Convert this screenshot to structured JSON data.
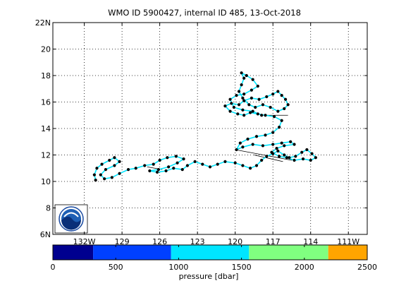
{
  "chart_data": {
    "type": "scatter",
    "title": "WMO ID 5900427, internal ID 485, 13-Oct-2018",
    "x_ticks": [
      "132W",
      "129",
      "126",
      "123",
      "120",
      "117",
      "114",
      "111W"
    ],
    "x_tick_values": [
      -132,
      -129,
      -126,
      -123,
      -120,
      -117,
      -114,
      -111
    ],
    "y_ticks": [
      "6N",
      "8",
      "10",
      "12",
      "14",
      "16",
      "18",
      "20",
      "22N"
    ],
    "y_tick_values": [
      6,
      8,
      10,
      12,
      14,
      16,
      18,
      20,
      22
    ],
    "xlim": [
      -134.5,
      -109.5
    ],
    "ylim": [
      6,
      22
    ],
    "grid": true,
    "logo": "noaa-logo",
    "colorbar": {
      "label": "pressure [dbar]",
      "ticks": [
        "0",
        "500",
        "1000",
        "1500",
        "2000",
        "2500"
      ],
      "tick_values": [
        0,
        500,
        1000,
        1500,
        2000,
        2500
      ],
      "range": [
        0,
        2500
      ],
      "bands": [
        {
          "from": 0,
          "to": 320,
          "color": "#00008f"
        },
        {
          "from": 320,
          "to": 940,
          "color": "#0040ff"
        },
        {
          "from": 940,
          "to": 1560,
          "color": "#00e5ff"
        },
        {
          "from": 1560,
          "to": 2190,
          "color": "#80ff80"
        },
        {
          "from": 2190,
          "to": 2500,
          "color": "#ffa500"
        }
      ]
    },
    "series": [
      {
        "marker_color": "#000000",
        "line_color": "#00e5ff",
        "points": [
          [
            -131.1,
            10.1
          ],
          [
            -131.2,
            10.5
          ],
          [
            -131.0,
            11.0
          ],
          [
            -130.6,
            11.3
          ],
          [
            -130.0,
            11.6
          ],
          [
            -129.6,
            11.8
          ],
          [
            -129.2,
            11.5
          ],
          [
            -129.6,
            11.2
          ],
          [
            -130.3,
            10.9
          ],
          [
            -130.7,
            10.5
          ],
          [
            -130.4,
            10.2
          ],
          [
            -129.8,
            10.3
          ],
          [
            -129.2,
            10.6
          ],
          [
            -128.5,
            10.9
          ],
          [
            -127.9,
            11.0
          ],
          [
            -127.2,
            11.2
          ],
          [
            -126.5,
            11.3
          ],
          [
            -126.0,
            11.6
          ],
          [
            -125.4,
            11.8
          ],
          [
            -124.7,
            11.9
          ],
          [
            -124.1,
            11.7
          ],
          [
            -124.6,
            11.4
          ],
          [
            -125.3,
            11.1
          ],
          [
            -126.1,
            10.9
          ],
          [
            -126.8,
            10.8
          ],
          [
            -126.2,
            10.7
          ],
          [
            -125.5,
            10.8
          ],
          [
            -124.9,
            11.0
          ],
          [
            -124.2,
            10.9
          ],
          [
            -123.8,
            11.2
          ],
          [
            -123.2,
            11.5
          ],
          [
            -122.6,
            11.3
          ],
          [
            -122.0,
            11.1
          ],
          [
            -121.4,
            11.3
          ],
          [
            -120.8,
            11.5
          ],
          [
            -120.0,
            11.4
          ],
          [
            -119.4,
            11.2
          ],
          [
            -118.8,
            11.0
          ],
          [
            -118.3,
            11.2
          ],
          [
            -117.9,
            11.6
          ],
          [
            -117.5,
            11.9
          ],
          [
            -117.0,
            12.1
          ],
          [
            -116.6,
            12.3
          ],
          [
            -116.1,
            12.0
          ],
          [
            -115.7,
            11.8
          ],
          [
            -115.2,
            11.9
          ],
          [
            -114.7,
            12.2
          ],
          [
            -114.3,
            12.4
          ],
          [
            -113.9,
            12.1
          ],
          [
            -113.6,
            11.8
          ],
          [
            -114.0,
            11.6
          ],
          [
            -114.6,
            11.7
          ],
          [
            -115.3,
            11.6
          ],
          [
            -115.9,
            11.8
          ],
          [
            -116.5,
            11.9
          ],
          [
            -117.1,
            12.2
          ],
          [
            -116.7,
            12.5
          ],
          [
            -116.1,
            12.7
          ],
          [
            -115.3,
            12.8
          ],
          [
            -115.6,
            13.0
          ],
          [
            -116.3,
            12.9
          ],
          [
            -117.0,
            12.8
          ],
          [
            -117.8,
            12.7
          ],
          [
            -118.6,
            12.8
          ],
          [
            -119.4,
            12.6
          ],
          [
            -119.9,
            12.4
          ],
          [
            -119.6,
            12.9
          ],
          [
            -119.0,
            13.2
          ],
          [
            -118.3,
            13.4
          ],
          [
            -117.6,
            13.5
          ],
          [
            -117.0,
            13.7
          ],
          [
            -116.5,
            14.1
          ],
          [
            -116.3,
            14.6
          ],
          [
            -116.9,
            14.9
          ],
          [
            -117.6,
            15.0
          ],
          [
            -118.2,
            15.1
          ],
          [
            -118.8,
            15.2
          ],
          [
            -119.3,
            15.0
          ],
          [
            -119.8,
            15.1
          ],
          [
            -120.4,
            15.3
          ],
          [
            -120.8,
            15.7
          ],
          [
            -120.3,
            15.9
          ],
          [
            -119.7,
            15.8
          ],
          [
            -119.3,
            16.1
          ],
          [
            -118.7,
            16.3
          ],
          [
            -118.1,
            16.2
          ],
          [
            -117.5,
            16.4
          ],
          [
            -117.0,
            16.6
          ],
          [
            -116.6,
            16.8
          ],
          [
            -116.3,
            16.5
          ],
          [
            -116.0,
            16.2
          ],
          [
            -115.8,
            15.8
          ],
          [
            -116.1,
            15.5
          ],
          [
            -116.6,
            15.3
          ],
          [
            -117.2,
            15.6
          ],
          [
            -117.8,
            15.8
          ],
          [
            -118.4,
            15.6
          ],
          [
            -118.9,
            15.8
          ],
          [
            -119.4,
            16.3
          ],
          [
            -119.7,
            16.8
          ],
          [
            -119.5,
            17.3
          ],
          [
            -119.3,
            17.8
          ],
          [
            -119.5,
            18.2
          ],
          [
            -119.1,
            18.0
          ],
          [
            -118.6,
            17.7
          ],
          [
            -118.2,
            17.2
          ],
          [
            -118.7,
            16.9
          ],
          [
            -119.3,
            16.6
          ],
          [
            -119.9,
            16.5
          ],
          [
            -120.4,
            16.2
          ],
          [
            -120.1,
            15.6
          ],
          [
            -119.4,
            15.4
          ],
          [
            -118.6,
            15.3
          ],
          [
            -117.9,
            15.0
          ]
        ]
      }
    ],
    "straight_segments": [
      [
        [
          -117.9,
          15.0
        ],
        [
          -115.8,
          15.0
        ]
      ],
      [
        [
          -120.0,
          12.4
        ],
        [
          -115.5,
          11.6
        ]
      ],
      [
        [
          -118.5,
          12.0
        ],
        [
          -116.2,
          11.5
        ]
      ],
      [
        [
          -127.0,
          11.1
        ],
        [
          -125.8,
          10.9
        ]
      ]
    ]
  }
}
